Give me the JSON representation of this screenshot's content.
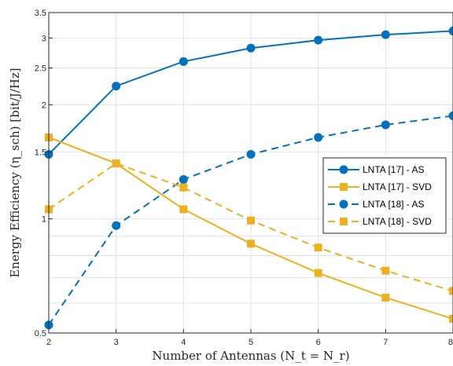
{
  "chart_data": {
    "type": "line",
    "title": "",
    "xlabel": "Number of Antennas (N_t = N_r)",
    "ylabel": "Energy Efficiency (η_sch) [bit/J/Hz]",
    "xlim": [
      2,
      8
    ],
    "ylim": [
      0.5,
      3.5
    ],
    "yscale": "log",
    "grid": true,
    "legend_location": "center-right",
    "x": [
      2,
      3,
      4,
      5,
      6,
      7,
      8
    ],
    "xticks": [
      "2",
      "3",
      "4",
      "5",
      "6",
      "7",
      "8"
    ],
    "yticks": [
      {
        "value": 0.5,
        "label": "0.5"
      },
      {
        "value": 1,
        "label": "1"
      },
      {
        "value": 1.5,
        "label": "1.5"
      },
      {
        "value": 2,
        "label": "2"
      },
      {
        "value": 2.5,
        "label": "2.5"
      },
      {
        "value": 3,
        "label": "3"
      },
      {
        "value": 3.5,
        "label": "3.5"
      }
    ],
    "minor_yticks": [
      0.6,
      0.7,
      0.8,
      0.9
    ],
    "series": [
      {
        "name": "LNTA [17] - AS",
        "color": "#0072BD",
        "dash": "solid",
        "marker": "circle",
        "values": [
          1.48,
          2.24,
          2.6,
          2.82,
          2.96,
          3.06,
          3.13
        ]
      },
      {
        "name": "LNTA [17] - SVD",
        "color": "#EDB120",
        "dash": "solid",
        "marker": "square",
        "values": [
          1.64,
          1.4,
          1.06,
          0.86,
          0.72,
          0.62,
          0.545
        ]
      },
      {
        "name": "LNTA [18] - AS",
        "color": "#0072BD",
        "dash": "dashed",
        "marker": "circle",
        "values": [
          0.525,
          0.96,
          1.27,
          1.48,
          1.64,
          1.77,
          1.87
        ]
      },
      {
        "name": "LNTA [18] - SVD",
        "color": "#EDB120",
        "dash": "dashed",
        "marker": "square",
        "values": [
          1.06,
          1.4,
          1.21,
          0.99,
          0.84,
          0.73,
          0.645
        ]
      }
    ]
  }
}
